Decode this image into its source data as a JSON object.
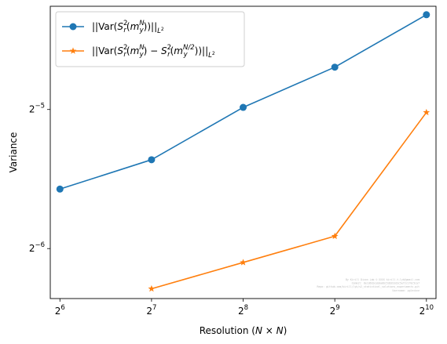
{
  "chart_data": {
    "type": "line",
    "title": "",
    "xscale": "log2",
    "yscale": "log2",
    "x": [
      64,
      128,
      256,
      512,
      1024
    ],
    "x_tick_labels": [
      {
        "base": "2",
        "exp": "6"
      },
      {
        "base": "2",
        "exp": "7"
      },
      {
        "base": "2",
        "exp": "8"
      },
      {
        "base": "2",
        "exp": "9"
      },
      {
        "base": "2",
        "exp": "10"
      }
    ],
    "y_tick_labels": [
      {
        "base": "2",
        "exp": "−5",
        "value": 0.03125
      },
      {
        "base": "2",
        "exp": "−6",
        "value": 0.015625
      }
    ],
    "xlim": [
      59.5,
      1101
    ],
    "ylim": [
      0.01218,
      0.05227
    ],
    "xlabel": {
      "text": "Resolution (",
      "math": "N × N",
      "close": ")"
    },
    "ylabel": "Variance",
    "legend_position": "upper-left",
    "series": [
      {
        "name": "||Var(S_r^2(m_y^N))||_{L^2}",
        "color": "#1f77b4",
        "marker": "circle",
        "x": [
          64,
          128,
          256,
          512,
          1024
        ],
        "values": [
          0.02102,
          0.02433,
          0.03158,
          0.03859,
          0.05011
        ]
      },
      {
        "name": "||Var(S_r^2(m_y^N) − S_r^2(m_y^{N/2}))||_{L^2}",
        "color": "#ff7f0e",
        "marker": "star",
        "x": [
          128,
          256,
          512,
          1024
        ],
        "values": [
          0.01279,
          0.01458,
          0.01662,
          0.0308
        ]
      }
    ],
    "watermark_lines": [
      "By Kirill Dixon Lab © XXXX kirill.t.lyk@gmail.com",
      "Commit: 8e1d61bceb0a0b15db2b1d3c5ef2c1f0c5ca7",
      "Repo: github.com/kirill/lyk/s2_statistical_solutions_experiments.git",
      "Username: pgleckne"
    ]
  }
}
